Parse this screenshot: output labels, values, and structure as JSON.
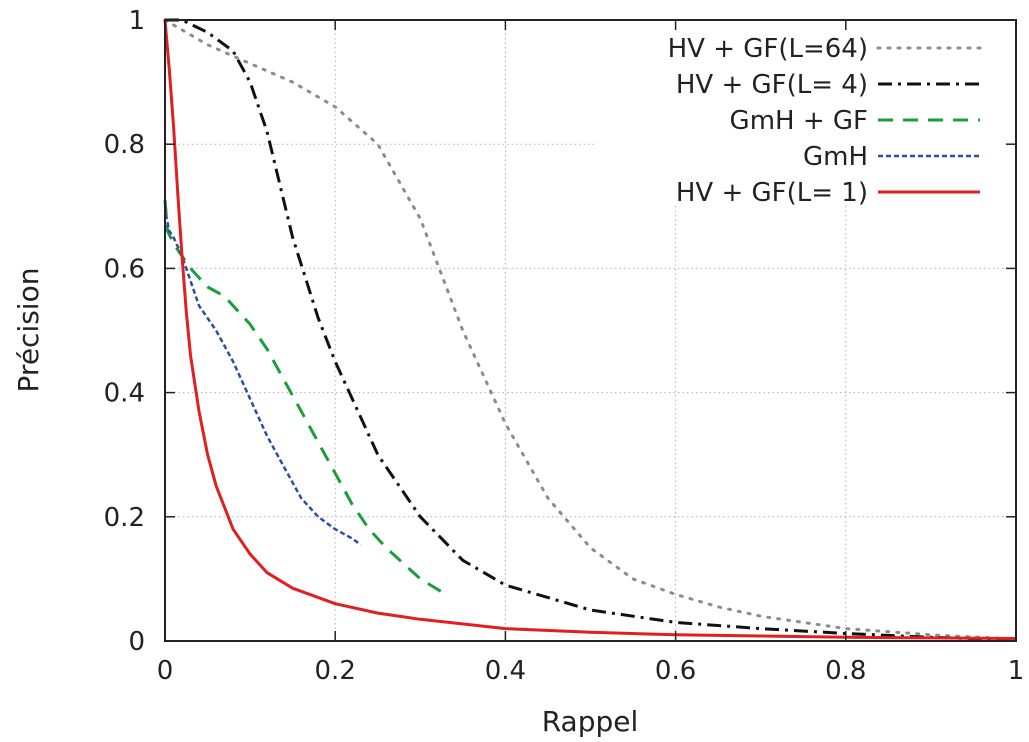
{
  "chart_data": {
    "type": "line",
    "title": "",
    "xlabel": "Rappel",
    "ylabel": "Précision",
    "xlim": [
      0,
      1
    ],
    "ylim": [
      0,
      1
    ],
    "xticks": [
      "0",
      "0.2",
      "0.4",
      "0.6",
      "0.8",
      "1"
    ],
    "yticks": [
      "0",
      "0.2",
      "0.4",
      "0.6",
      "0.8",
      "1"
    ],
    "grid": true,
    "legend_position": "top-right",
    "series": [
      {
        "name": "HV + GF(L=64)",
        "color": "#8c8c8c",
        "style": "dotted",
        "x": [
          0,
          0.05,
          0.1,
          0.15,
          0.2,
          0.25,
          0.3,
          0.35,
          0.4,
          0.45,
          0.5,
          0.55,
          0.6,
          0.65,
          0.7,
          0.8,
          0.9,
          1.0
        ],
        "y": [
          1.0,
          0.96,
          0.93,
          0.9,
          0.86,
          0.8,
          0.68,
          0.5,
          0.35,
          0.23,
          0.15,
          0.1,
          0.075,
          0.055,
          0.04,
          0.02,
          0.01,
          0.003
        ]
      },
      {
        "name": "HV + GF(L=  4)",
        "color": "#111111",
        "style": "dash-dot",
        "x": [
          0,
          0.02,
          0.05,
          0.08,
          0.1,
          0.12,
          0.15,
          0.18,
          0.2,
          0.25,
          0.3,
          0.35,
          0.4,
          0.5,
          0.6,
          0.7,
          0.8,
          0.9,
          1.0
        ],
        "y": [
          1.0,
          1.0,
          0.98,
          0.95,
          0.9,
          0.82,
          0.65,
          0.52,
          0.45,
          0.3,
          0.2,
          0.13,
          0.09,
          0.05,
          0.03,
          0.02,
          0.012,
          0.006,
          0.002
        ]
      },
      {
        "name": "GmH + GF",
        "color": "#1a9e3c",
        "style": "dashed",
        "x": [
          0,
          0.003,
          0.01,
          0.03,
          0.05,
          0.07,
          0.08,
          0.1,
          0.12,
          0.14,
          0.16,
          0.18,
          0.2,
          0.22,
          0.24,
          0.26,
          0.28,
          0.3,
          0.33
        ],
        "y": [
          0.71,
          0.66,
          0.64,
          0.6,
          0.57,
          0.555,
          0.54,
          0.51,
          0.47,
          0.42,
          0.37,
          0.32,
          0.27,
          0.22,
          0.18,
          0.15,
          0.125,
          0.1,
          0.075
        ]
      },
      {
        "name": "GmH",
        "color": "#2a4fa0",
        "style": "fine-dashed",
        "x": [
          0,
          0.002,
          0.005,
          0.01,
          0.02,
          0.03,
          0.04,
          0.06,
          0.08,
          0.1,
          0.12,
          0.14,
          0.16,
          0.18,
          0.2,
          0.22,
          0.23
        ],
        "y": [
          0.7,
          0.68,
          0.66,
          0.65,
          0.62,
          0.58,
          0.54,
          0.5,
          0.45,
          0.39,
          0.33,
          0.28,
          0.23,
          0.2,
          0.18,
          0.165,
          0.155
        ]
      },
      {
        "name": "HV + GF(L=  1)",
        "color": "#e02020",
        "style": "solid",
        "x": [
          0,
          0.005,
          0.01,
          0.015,
          0.02,
          0.025,
          0.03,
          0.04,
          0.05,
          0.06,
          0.08,
          0.1,
          0.12,
          0.15,
          0.2,
          0.25,
          0.3,
          0.4,
          0.5,
          0.6,
          0.7,
          0.8,
          0.9,
          1.0
        ],
        "y": [
          1.0,
          0.92,
          0.83,
          0.72,
          0.62,
          0.53,
          0.46,
          0.37,
          0.3,
          0.25,
          0.18,
          0.14,
          0.11,
          0.085,
          0.06,
          0.045,
          0.035,
          0.02,
          0.014,
          0.01,
          0.008,
          0.006,
          0.005,
          0.004
        ]
      }
    ]
  }
}
